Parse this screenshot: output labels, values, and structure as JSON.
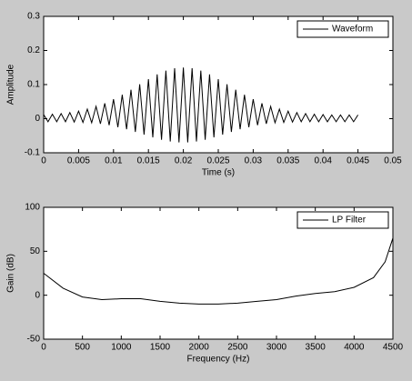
{
  "chart_data": [
    {
      "type": "line",
      "x_label": "Time (s)",
      "y_label": "Amplitude",
      "x": [
        0,
        0.000625,
        0.00125,
        0.001875,
        0.0025,
        0.003125,
        0.00375,
        0.004375,
        0.005,
        0.005625,
        0.00625,
        0.006875,
        0.0075,
        0.008125,
        0.00875,
        0.009375,
        0.01,
        0.010625,
        0.01125,
        0.011875,
        0.0125,
        0.013125,
        0.01375,
        0.014375,
        0.015,
        0.015625,
        0.01625,
        0.016875,
        0.0175,
        0.018125,
        0.01875,
        0.019375,
        0.02,
        0.020625,
        0.02125,
        0.021875,
        0.0225,
        0.023125,
        0.02375,
        0.024375,
        0.025,
        0.025625,
        0.02625,
        0.026875,
        0.0275,
        0.028125,
        0.02875,
        0.029375,
        0.03,
        0.030625,
        0.03125,
        0.031875,
        0.0325,
        0.033125,
        0.03375,
        0.034375,
        0.035,
        0.035625,
        0.03625,
        0.036875,
        0.0375,
        0.038125,
        0.03875,
        0.039375,
        0.04,
        0.040625,
        0.04125,
        0.041875,
        0.0425,
        0.043125,
        0.04375,
        0.044375,
        0.045
      ],
      "series": [
        {
          "name": "Waveform",
          "color": "#000000",
          "values": [
            0.012,
            -0.009,
            0.013,
            -0.009,
            0.015,
            -0.009,
            0.018,
            -0.01,
            0.022,
            -0.011,
            0.028,
            -0.012,
            0.036,
            -0.015,
            0.045,
            -0.019,
            0.057,
            -0.025,
            0.07,
            -0.031,
            0.085,
            -0.039,
            0.101,
            -0.047,
            0.116,
            -0.055,
            0.13,
            -0.062,
            0.141,
            -0.067,
            0.148,
            -0.0695,
            0.15,
            -0.0695,
            0.148,
            -0.067,
            0.141,
            -0.062,
            0.13,
            -0.055,
            0.116,
            -0.047,
            0.101,
            -0.039,
            0.085,
            -0.031,
            0.07,
            -0.025,
            0.057,
            -0.019,
            0.045,
            -0.015,
            0.036,
            -0.012,
            0.028,
            -0.011,
            0.022,
            -0.01,
            0.018,
            -0.009,
            0.015,
            -0.009,
            0.013,
            -0.009,
            0.012,
            -0.009,
            0.011,
            -0.009,
            0.011,
            -0.009,
            0.011,
            -0.009,
            0.011
          ]
        }
      ],
      "xlim": [
        0,
        0.05
      ],
      "ylim": [
        -0.1,
        0.3
      ],
      "xticks": [
        0,
        0.005,
        0.01,
        0.015,
        0.02,
        0.025,
        0.03,
        0.035,
        0.04,
        0.045,
        0.05
      ],
      "yticks": [
        -0.1,
        0,
        0.1,
        0.2,
        0.3
      ],
      "legend": "upper right"
    },
    {
      "type": "line",
      "x_label": "Frequency (Hz)",
      "y_label": "Gain (dB)",
      "x": [
        0,
        250,
        500,
        750,
        1000,
        1250,
        1500,
        1750,
        2000,
        2250,
        2500,
        2750,
        3000,
        3250,
        3500,
        3750,
        4000,
        4250,
        4400,
        4500
      ],
      "series": [
        {
          "name": "LP Filter",
          "color": "#000000",
          "values": [
            25,
            8,
            -2,
            -5,
            -4,
            -4,
            -7,
            -9,
            -10,
            -10,
            -9,
            -7,
            -5,
            -1,
            2,
            4,
            9,
            20,
            38,
            65
          ]
        }
      ],
      "xlim": [
        0,
        4500
      ],
      "ylim": [
        -50,
        100
      ],
      "xticks": [
        0,
        500,
        1000,
        1500,
        2000,
        2500,
        3000,
        3500,
        4000,
        4500
      ],
      "yticks": [
        -50,
        0,
        50,
        100
      ],
      "legend": "upper right"
    }
  ]
}
